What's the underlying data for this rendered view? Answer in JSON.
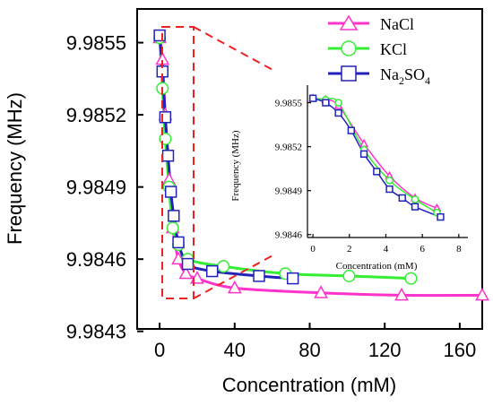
{
  "chart_data": [
    {
      "id": "main",
      "type": "line",
      "xlabel": "Concentration (mM)",
      "ylabel": "Frequency  (MHz)",
      "xlim": [
        -12,
        172
      ],
      "ylim": [
        9.98431,
        9.98564
      ],
      "xticks": [
        0,
        40,
        80,
        120,
        160
      ],
      "xtick_labels": [
        "0",
        "40",
        "80",
        "120",
        "160"
      ],
      "yticks": [
        9.9843,
        9.9846,
        9.9849,
        9.9852,
        9.9855
      ],
      "ytick_labels": [
        "9.9843",
        "9.9846",
        "9.9849",
        "9.9852",
        "9.9855"
      ],
      "grid": false,
      "legend_position": "top-right",
      "series": [
        {
          "name": "NaCl",
          "color": "#ff33cc",
          "marker": "triangle",
          "x": [
            0,
            1.5,
            3,
            5,
            7,
            10,
            14,
            20,
            40,
            86,
            129,
            172
          ],
          "y": [
            9.98552,
            9.98543,
            9.9852,
            9.98493,
            9.98473,
            9.9846,
            9.98454,
            9.98452,
            9.98448,
            9.98446,
            9.98445,
            9.98445
          ]
        },
        {
          "name": "KCl",
          "color": "#33ee33",
          "marker": "circle",
          "x": [
            0,
            1.5,
            3,
            5,
            7,
            10,
            15,
            34,
            67,
            101,
            134
          ],
          "y": [
            9.98552,
            9.98531,
            9.9851,
            9.9849,
            9.98473,
            9.98466,
            9.9846,
            9.98457,
            9.98454,
            9.98453,
            9.98452
          ]
        },
        {
          "name": "Na2SO4",
          "name_parts": {
            "n1": "Na",
            "s1": "2",
            "n2": "SO",
            "s2": "4"
          },
          "color": "#2222bb",
          "marker": "square",
          "x": [
            0,
            1.5,
            3,
            4.5,
            6,
            7.5,
            10,
            15,
            28,
            53,
            71
          ],
          "y": [
            9.98553,
            9.98538,
            9.98519,
            9.98503,
            9.98488,
            9.98478,
            9.98467,
            9.98458,
            9.98455,
            9.98453,
            9.98452
          ]
        }
      ]
    },
    {
      "id": "inset",
      "type": "line",
      "xlabel": "Concentration (mM)",
      "ylabel": "Frequency  (MHz)",
      "xlim": [
        -0.3,
        8.5
      ],
      "ylim": [
        9.98458,
        9.98562
      ],
      "xticks": [
        0,
        2,
        4,
        6,
        8
      ],
      "xtick_labels": [
        "0",
        "2",
        "4",
        "6",
        "8"
      ],
      "yticks": [
        9.9846,
        9.9849,
        9.9852,
        9.9855
      ],
      "ytick_labels": [
        "9.9846",
        "9.9849",
        "9.9852",
        "9.9855"
      ],
      "grid": false,
      "series": [
        {
          "name": "NaCl",
          "color": "#ff33cc",
          "marker": "triangle",
          "x": [
            0,
            0.7,
            1.4,
            2.8,
            4.2,
            5.6,
            6.8
          ],
          "y": [
            9.98553,
            9.98552,
            9.98548,
            9.98522,
            9.985,
            9.98485,
            9.98478
          ]
        },
        {
          "name": "KCl",
          "color": "#33ee33",
          "marker": "circle",
          "x": [
            0,
            0.7,
            1.4,
            2.8,
            4.2,
            5.6,
            6.8
          ],
          "y": [
            9.98553,
            9.98552,
            9.9855,
            9.98518,
            9.98497,
            9.98484,
            9.98475
          ]
        },
        {
          "name": "Na2SO4",
          "color": "#2222bb",
          "marker": "square",
          "x": [
            0,
            0.7,
            1.4,
            2.1,
            2.8,
            3.5,
            4.2,
            4.9,
            5.6,
            7.0
          ],
          "y": [
            9.98553,
            9.9855,
            9.98543,
            9.98531,
            9.98515,
            9.98503,
            9.98491,
            9.98485,
            9.98479,
            9.98472
          ]
        }
      ]
    }
  ]
}
